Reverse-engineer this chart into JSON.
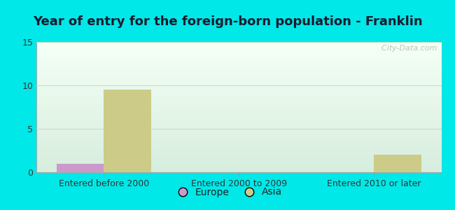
{
  "title": "Year of entry for the foreign-born population - Franklin",
  "categories": [
    "Entered before 2000",
    "Entered 2000 to 2009",
    "Entered 2010 or later"
  ],
  "series": [
    {
      "name": "Europe",
      "color": "#cc99cc",
      "values": [
        1,
        0,
        0
      ]
    },
    {
      "name": "Asia",
      "color": "#cccc88",
      "values": [
        9.5,
        0,
        2
      ]
    }
  ],
  "ylim": [
    0,
    15
  ],
  "yticks": [
    0,
    5,
    10,
    15
  ],
  "bar_width": 0.35,
  "background_outer": "#00e8e8",
  "background_plot_top": "#f0fff0",
  "background_plot_bottom": "#d8eedd",
  "grid_color": "#c8ddc8",
  "title_fontsize": 13,
  "tick_fontsize": 9,
  "legend_fontsize": 10,
  "watermark": "  City-Data.com"
}
